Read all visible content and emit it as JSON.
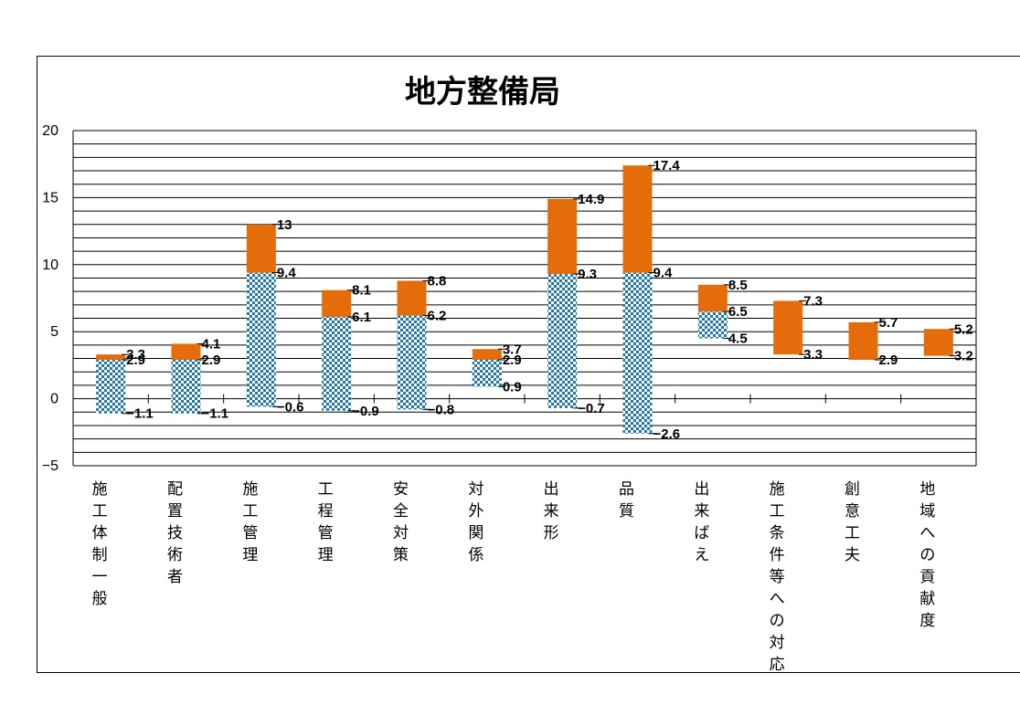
{
  "colors": {
    "upper_bar": "#e46c0a",
    "lower_bar_pattern": "#1f78b4",
    "grid": "#000000",
    "background": "#ffffff"
  },
  "chart_data": {
    "type": "bar",
    "title": "地方整備局",
    "ylim": [
      -5,
      20
    ],
    "yticks": [
      "20",
      "15",
      "10",
      "5",
      "0",
      "−5"
    ],
    "ytick_values": [
      20,
      15,
      10,
      5,
      0,
      -5
    ],
    "grid": true,
    "categories": [
      "施工体制一般",
      "配置技術者",
      "施工管理",
      "工程管理",
      "安全対策",
      "対外関係",
      "出来形",
      "品質",
      "出来ばえ",
      "施工条件等への対応",
      "創意工夫",
      "地域への貢献度"
    ],
    "series": [
      {
        "pattern": "checkered",
        "color": "#1f78b4",
        "low": [
          -1.1,
          -1.1,
          -0.6,
          -0.9,
          -0.8,
          0.9,
          -0.7,
          -2.6,
          4.5,
          null,
          null,
          null
        ],
        "high": [
          2.9,
          2.9,
          9.4,
          6.1,
          6.2,
          2.9,
          9.3,
          9.4,
          6.5,
          null,
          null,
          null
        ]
      },
      {
        "pattern": "solid",
        "color": "#e46c0a",
        "low": [
          2.9,
          2.9,
          9.4,
          6.1,
          6.2,
          2.9,
          9.3,
          9.4,
          6.5,
          3.3,
          2.9,
          3.2
        ],
        "high": [
          3.3,
          4.1,
          13,
          8.1,
          8.8,
          3.7,
          14.9,
          17.4,
          8.5,
          7.3,
          5.7,
          5.2
        ]
      }
    ],
    "labels": {
      "top": [
        "3.3",
        "4.1",
        "13",
        "8.1",
        "8.8",
        "3.7",
        "14.9",
        "17.4",
        "8.5",
        "7.3",
        "5.7",
        "5.2"
      ],
      "mid": [
        "2.9",
        "2.9",
        "9.4",
        "6.1",
        "6.2",
        "2.9",
        "9.3",
        "9.4",
        "6.5",
        "3.3",
        "2.9",
        "3.2"
      ],
      "bottom": [
        "−1.1",
        "−1.1",
        "−0.6",
        "−0.9",
        "−0.8",
        "0.9",
        "−0.7",
        "−2.6",
        "4.5",
        "",
        "",
        ""
      ]
    }
  }
}
